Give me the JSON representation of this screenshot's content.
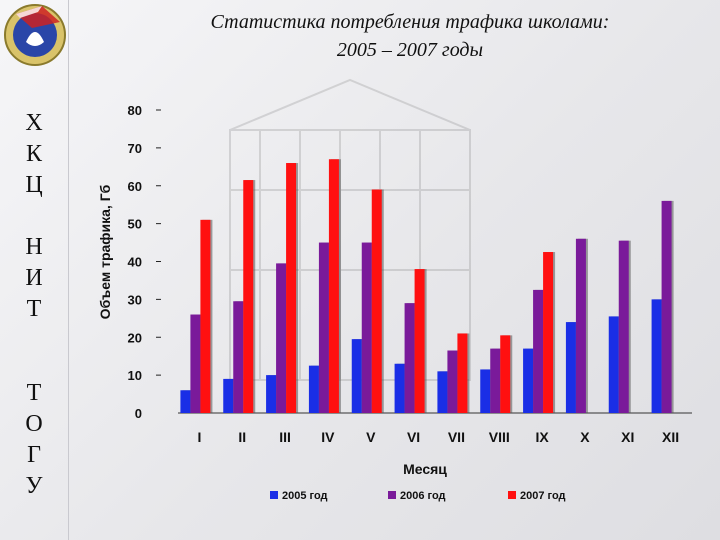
{
  "slide": {
    "title_line1": "Статистика потребления трафика школами:",
    "title_line2": "2005 – 2007 годы",
    "side_groups": [
      [
        "Х",
        "К",
        "Ц"
      ],
      [
        "Н",
        "И",
        "Т"
      ],
      [
        "Т",
        "О",
        "Г",
        "У"
      ]
    ]
  },
  "chart_data": {
    "type": "bar",
    "title": "",
    "xlabel": "Месяц",
    "ylabel": "Объем трафика, Гб",
    "ylim": [
      0,
      80
    ],
    "yticks": [
      0,
      10,
      20,
      30,
      40,
      50,
      60,
      70,
      80
    ],
    "grid": false,
    "legend_position": "bottom",
    "categories": [
      "I",
      "II",
      "III",
      "IV",
      "V",
      "VI",
      "VII",
      "VIII",
      "IX",
      "X",
      "XI",
      "XII"
    ],
    "series": [
      {
        "name": "2005 год",
        "color": "#1a2ee6",
        "values": [
          6,
          9,
          10,
          12.5,
          19.5,
          13,
          11,
          11.5,
          17,
          24,
          25.5,
          30
        ]
      },
      {
        "name": "2006 год",
        "color": "#7a1a9a",
        "values": [
          26,
          29.5,
          39.5,
          45,
          45,
          29,
          16.5,
          17,
          32.5,
          46,
          45.5,
          56
        ]
      },
      {
        "name": "2007 год",
        "color": "#ff1010",
        "values": [
          51,
          61.5,
          66,
          67,
          59,
          38,
          21,
          20.5,
          42.5,
          null,
          null,
          null
        ]
      }
    ]
  }
}
